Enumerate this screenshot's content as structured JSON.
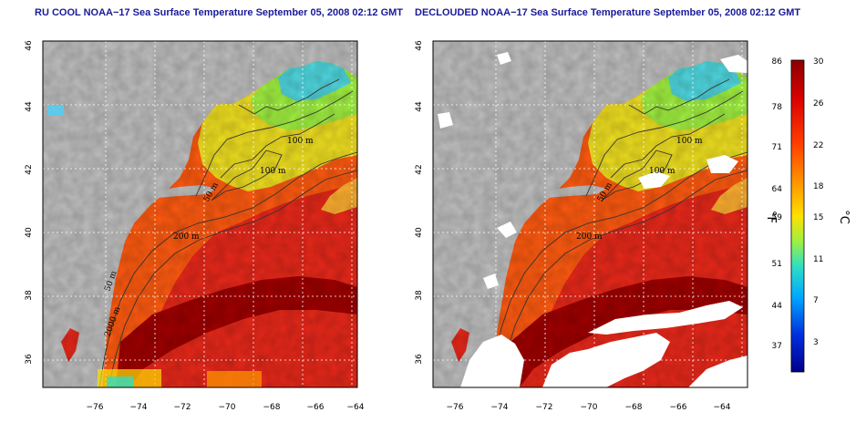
{
  "panels": [
    {
      "title": "RU COOL NOAA−17 Sea Surface Temperature September 05, 2008 02:12 GMT"
    },
    {
      "title": "DECLOUDED NOAA−17 Sea Surface Temperature September 05, 2008 02:12 GMT"
    }
  ],
  "map": {
    "lon_ticks": [
      "−76",
      "−74",
      "−72",
      "−70",
      "−68",
      "−66",
      "−64"
    ],
    "lat_ticks": [
      "46",
      "44",
      "42",
      "40",
      "38",
      "36"
    ],
    "contour_labels": [
      "100 m",
      "100 m",
      "50 m",
      "200 m",
      "50 m",
      "2000 m"
    ]
  },
  "colorbar": {
    "fahrenheit_ticks": [
      "86",
      "78",
      "71",
      "64",
      "59",
      "51",
      "44",
      "37"
    ],
    "celsius_ticks": [
      "30",
      "26",
      "22",
      "18",
      "15",
      "11",
      "7",
      "3"
    ],
    "unit_f": "°F",
    "unit_c": "°C",
    "colors": [
      "#8b0000",
      "#e00000",
      "#ff4a00",
      "#ff9a00",
      "#ffe000",
      "#a0f040",
      "#30e0c0",
      "#00a0ff",
      "#0030e0",
      "#00008b"
    ]
  },
  "legend_colors": {
    "land": "#c0c0c0",
    "cloud_mask": "#ffffff",
    "warm_water": "#e8281a",
    "gulf_stream": "#a00000",
    "shelf_water": "#f0e020",
    "gulf_of_maine": "#50d8e0"
  }
}
